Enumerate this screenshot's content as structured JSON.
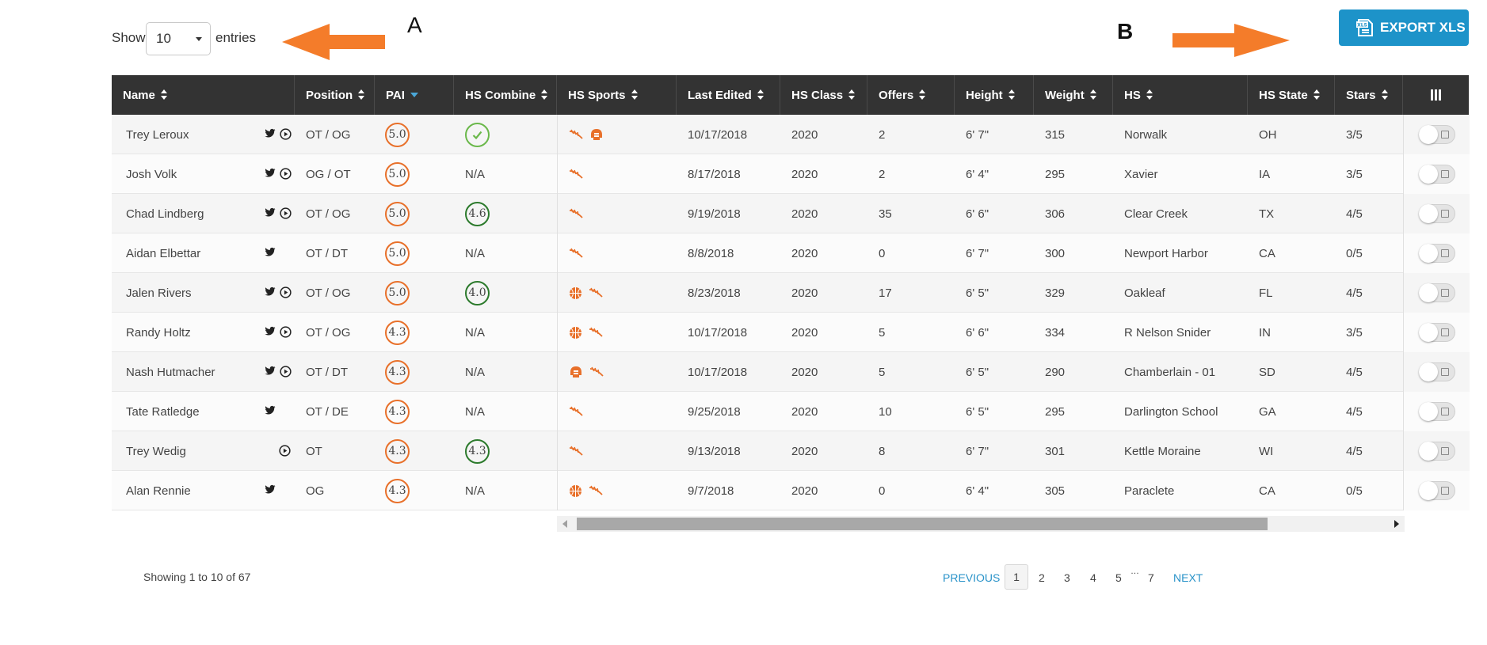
{
  "length_menu": {
    "show_label": "Show",
    "value": "10",
    "entries_label": "entries"
  },
  "annotations": {
    "a_label": "A",
    "b_label": "B",
    "arrow_color": "#f47c2a"
  },
  "export_button": {
    "label": "EXPORT XLS",
    "icon": "xls-file-icon",
    "icon_text": "XLS",
    "color": "#1d93c9"
  },
  "table": {
    "columns": [
      "Name",
      "Position",
      "PAI",
      "HS Combine",
      "HS Sports",
      "Last Edited",
      "HS Class",
      "Offers",
      "Height",
      "Weight",
      "HS",
      "HS State",
      "Stars"
    ],
    "column_toggle_icon": "columns-icon",
    "rows": [
      {
        "name": "Trey Leroux",
        "social": [
          "twitter",
          "video"
        ],
        "position": "OT / OG",
        "pai": "5.0",
        "combine": "check",
        "sports": [
          "track",
          "football"
        ],
        "last_edited": "10/17/2018",
        "hs_class": "2020",
        "offers": "2",
        "height": "6' 7\"",
        "weight": "315",
        "hs": "Norwalk",
        "hs_state": "OH",
        "stars": "3/5"
      },
      {
        "name": "Josh Volk",
        "social": [
          "twitter",
          "video"
        ],
        "position": "OG / OT",
        "pai": "5.0",
        "combine": "N/A",
        "sports": [
          "track"
        ],
        "last_edited": "8/17/2018",
        "hs_class": "2020",
        "offers": "2",
        "height": "6' 4\"",
        "weight": "295",
        "hs": "Xavier",
        "hs_state": "IA",
        "stars": "3/5"
      },
      {
        "name": "Chad Lindberg",
        "social": [
          "twitter",
          "video"
        ],
        "position": "OT / OG",
        "pai": "5.0",
        "combine": "4.6",
        "sports": [
          "track"
        ],
        "last_edited": "9/19/2018",
        "hs_class": "2020",
        "offers": "35",
        "height": "6' 6\"",
        "weight": "306",
        "hs": "Clear Creek",
        "hs_state": "TX",
        "stars": "4/5"
      },
      {
        "name": "Aidan Elbettar",
        "social": [
          "twitter"
        ],
        "position": "OT / DT",
        "pai": "5.0",
        "combine": "N/A",
        "sports": [
          "track"
        ],
        "last_edited": "8/8/2018",
        "hs_class": "2020",
        "offers": "0",
        "height": "6' 7\"",
        "weight": "300",
        "hs": "Newport Harbor",
        "hs_state": "CA",
        "stars": "0/5"
      },
      {
        "name": "Jalen Rivers",
        "social": [
          "twitter",
          "video"
        ],
        "position": "OT / OG",
        "pai": "5.0",
        "combine": "4.0",
        "sports": [
          "basketball",
          "track"
        ],
        "last_edited": "8/23/2018",
        "hs_class": "2020",
        "offers": "17",
        "height": "6' 5\"",
        "weight": "329",
        "hs": "Oakleaf",
        "hs_state": "FL",
        "stars": "4/5"
      },
      {
        "name": "Randy Holtz",
        "social": [
          "twitter",
          "video"
        ],
        "position": "OT / OG",
        "pai": "4.3",
        "combine": "N/A",
        "sports": [
          "basketball",
          "track"
        ],
        "last_edited": "10/17/2018",
        "hs_class": "2020",
        "offers": "5",
        "height": "6' 6\"",
        "weight": "334",
        "hs": "R Nelson Snider",
        "hs_state": "IN",
        "stars": "3/5"
      },
      {
        "name": "Nash Hutmacher",
        "social": [
          "twitter",
          "video"
        ],
        "position": "OT / DT",
        "pai": "4.3",
        "combine": "N/A",
        "sports": [
          "football",
          "track"
        ],
        "last_edited": "10/17/2018",
        "hs_class": "2020",
        "offers": "5",
        "height": "6' 5\"",
        "weight": "290",
        "hs": "Chamberlain - 01",
        "hs_state": "SD",
        "stars": "4/5"
      },
      {
        "name": "Tate Ratledge",
        "social": [
          "twitter"
        ],
        "position": "OT / DE",
        "pai": "4.3",
        "combine": "N/A",
        "sports": [
          "track"
        ],
        "last_edited": "9/25/2018",
        "hs_class": "2020",
        "offers": "10",
        "height": "6' 5\"",
        "weight": "295",
        "hs": "Darlington School",
        "hs_state": "GA",
        "stars": "4/5"
      },
      {
        "name": "Trey Wedig",
        "social": [
          "video"
        ],
        "position": "OT",
        "pai": "4.3",
        "combine": "4.3",
        "sports": [
          "track"
        ],
        "last_edited": "9/13/2018",
        "hs_class": "2020",
        "offers": "8",
        "height": "6' 7\"",
        "weight": "301",
        "hs": "Kettle Moraine",
        "hs_state": "WI",
        "stars": "4/5"
      },
      {
        "name": "Alan Rennie",
        "social": [
          "twitter"
        ],
        "position": "OG",
        "pai": "4.3",
        "combine": "N/A",
        "sports": [
          "basketball",
          "track"
        ],
        "last_edited": "9/7/2018",
        "hs_class": "2020",
        "offers": "0",
        "height": "6' 4\"",
        "weight": "305",
        "hs": "Paraclete",
        "hs_state": "CA",
        "stars": "0/5"
      }
    ]
  },
  "info": {
    "text": "Showing 1 to 10 of 67"
  },
  "pagination": {
    "previous": "PREVIOUS",
    "pages": [
      "1",
      "2",
      "3",
      "4",
      "5",
      "7"
    ],
    "ellipsis": "…",
    "current": "1",
    "next": "NEXT"
  },
  "colors": {
    "header_bg": "#333333",
    "accent_orange": "#e8702a",
    "link_blue": "#2a93c9"
  }
}
